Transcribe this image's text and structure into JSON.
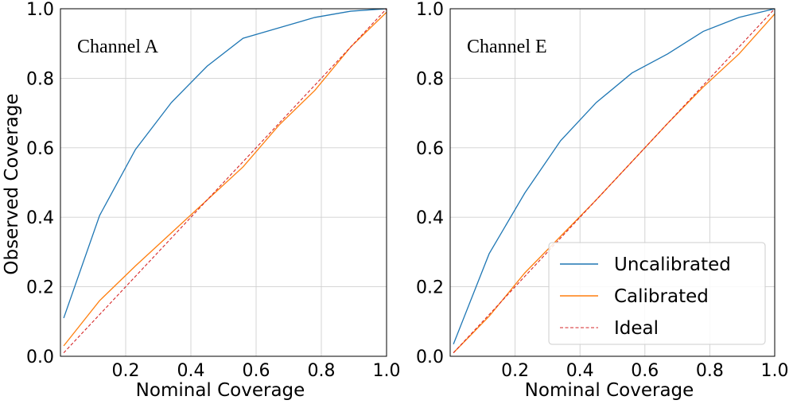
{
  "chart_data": [
    {
      "type": "line",
      "title": "Channel A",
      "xlabel": "Nominal Coverage",
      "ylabel": "Observed Coverage",
      "xlim": [
        0.0,
        1.0
      ],
      "ylim": [
        0.0,
        1.0
      ],
      "grid": true,
      "x_ticks": [
        "0.2",
        "0.4",
        "0.6",
        "0.8",
        "1.0"
      ],
      "y_ticks": [
        "0.0",
        "0.2",
        "0.4",
        "0.6",
        "0.8",
        "1.0"
      ],
      "series": [
        {
          "name": "Uncalibrated",
          "color": "#1f77b4",
          "style": "solid",
          "x": [
            0.01,
            0.12,
            0.23,
            0.34,
            0.45,
            0.56,
            0.67,
            0.78,
            0.89,
            1.0
          ],
          "y": [
            0.11,
            0.405,
            0.595,
            0.73,
            0.835,
            0.915,
            0.945,
            0.975,
            0.993,
            1.0
          ]
        },
        {
          "name": "Calibrated",
          "color": "#ff7f0e",
          "style": "solid",
          "x": [
            0.01,
            0.12,
            0.23,
            0.34,
            0.45,
            0.56,
            0.67,
            0.78,
            0.89,
            1.0
          ],
          "y": [
            0.03,
            0.16,
            0.26,
            0.355,
            0.45,
            0.545,
            0.665,
            0.765,
            0.89,
            0.99
          ]
        },
        {
          "name": "Ideal",
          "color": "#d62728",
          "style": "dashed",
          "x": [
            0.01,
            1.0
          ],
          "y": [
            0.01,
            1.0
          ]
        }
      ]
    },
    {
      "type": "line",
      "title": "Channel E",
      "xlabel": "Nominal Coverage",
      "ylabel": "",
      "xlim": [
        0.0,
        1.0
      ],
      "ylim": [
        0.0,
        1.0
      ],
      "grid": true,
      "x_ticks": [
        "0.2",
        "0.4",
        "0.6",
        "0.8",
        "1.0"
      ],
      "y_ticks": [
        "0.0",
        "0.2",
        "0.4",
        "0.6",
        "0.8",
        "1.0"
      ],
      "legend": {
        "position": "lower-right",
        "entries": [
          "Uncalibrated",
          "Calibrated",
          "Ideal"
        ]
      },
      "series": [
        {
          "name": "Uncalibrated",
          "color": "#1f77b4",
          "style": "solid",
          "x": [
            0.01,
            0.12,
            0.23,
            0.34,
            0.45,
            0.56,
            0.67,
            0.78,
            0.89,
            1.0
          ],
          "y": [
            0.035,
            0.295,
            0.47,
            0.62,
            0.73,
            0.815,
            0.87,
            0.935,
            0.975,
            1.0
          ]
        },
        {
          "name": "Calibrated",
          "color": "#ff7f0e",
          "style": "solid",
          "x": [
            0.01,
            0.12,
            0.23,
            0.34,
            0.45,
            0.56,
            0.67,
            0.78,
            0.89,
            1.0
          ],
          "y": [
            0.01,
            0.115,
            0.24,
            0.345,
            0.45,
            0.56,
            0.67,
            0.775,
            0.87,
            0.985
          ]
        },
        {
          "name": "Ideal",
          "color": "#d62728",
          "style": "dashed",
          "x": [
            0.01,
            1.0
          ],
          "y": [
            0.01,
            1.0
          ]
        }
      ]
    }
  ]
}
